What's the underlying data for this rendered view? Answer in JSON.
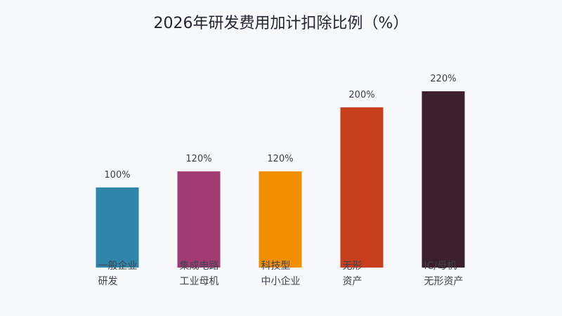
{
  "chart_data": {
    "type": "bar",
    "title": "2026年研发费用加计扣除比例（%）",
    "xlabel": "",
    "ylabel": "",
    "categories": [
      [
        "一般企业",
        "研发"
      ],
      [
        "集成电路",
        "工业母机"
      ],
      [
        "科技型",
        "中小企业"
      ],
      [
        "无形",
        "资产"
      ],
      [
        "IC/母机",
        "无形资产"
      ]
    ],
    "values": [
      100,
      120,
      120,
      200,
      220
    ],
    "value_labels": [
      "100%",
      "120%",
      "120%",
      "200%",
      "220%"
    ],
    "colors": [
      "#2e86ab",
      "#a23b72",
      "#f18f01",
      "#c73e1d",
      "#3b1f2b"
    ],
    "ylim": [
      0,
      220
    ],
    "grid": false,
    "legend": "none"
  }
}
